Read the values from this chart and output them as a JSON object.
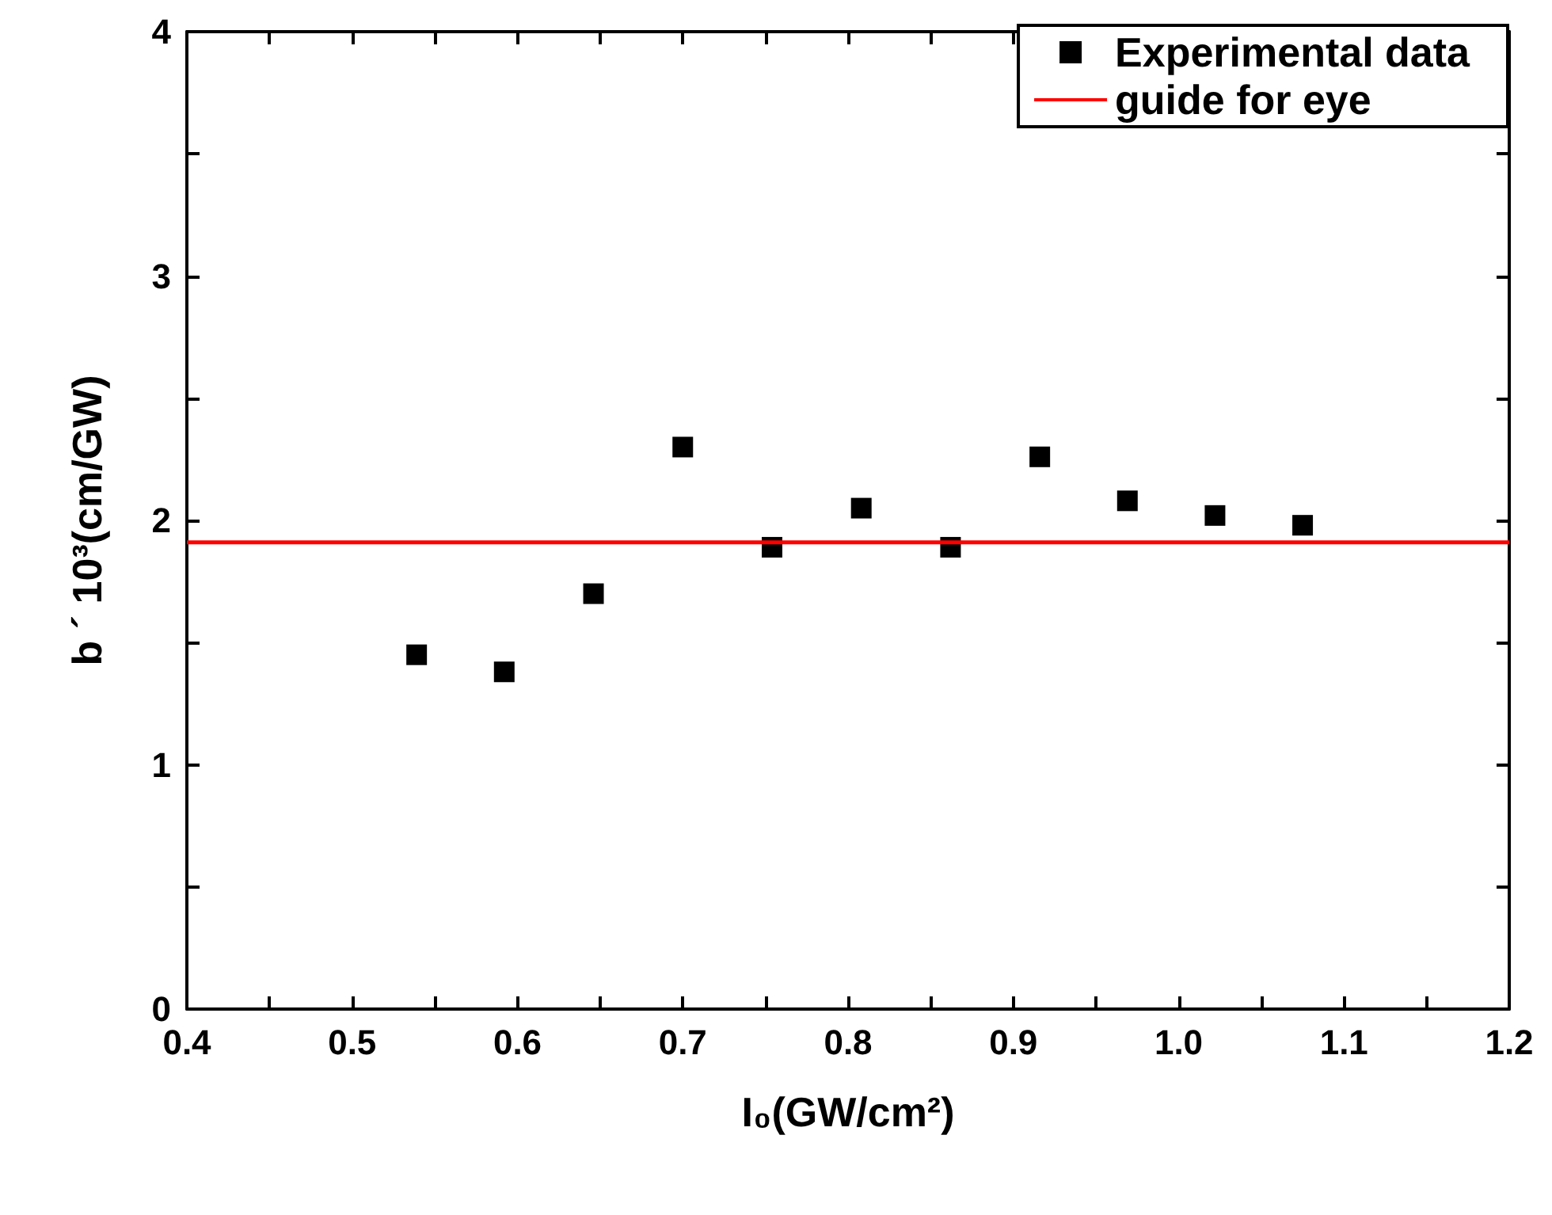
{
  "chart_data": {
    "type": "scatter",
    "xlabel": "I₀(GW/cm²)",
    "ylabel": "b ´ 10³(cm/GW)",
    "xlim": [
      0.4,
      1.2
    ],
    "xticks": [
      0.4,
      0.5,
      0.6,
      0.7,
      0.8,
      0.9,
      {
        "value": 1.0,
        "label": "1.0"
      },
      1.1,
      1.2
    ],
    "ylim": [
      0,
      4
    ],
    "yticks": [
      0,
      1,
      2,
      3,
      4
    ],
    "legend": "top right",
    "grid": false,
    "series": [
      {
        "name": "Experimental data",
        "marker": "square",
        "color": "#000000",
        "x": [
          0.539,
          0.592,
          0.646,
          0.7,
          0.754,
          0.808,
          0.862,
          0.916,
          0.969,
          1.022,
          1.075
        ],
        "values": [
          1.45,
          1.38,
          1.7,
          2.3,
          1.89,
          2.05,
          1.89,
          2.26,
          2.08,
          2.02,
          1.98
        ]
      },
      {
        "name": "guide for eye",
        "type": "line",
        "marker": "none",
        "color": "#ff0000",
        "line_style": "solid",
        "x": [
          0.4,
          1.2
        ],
        "values": [
          1.91,
          1.91
        ]
      }
    ]
  }
}
